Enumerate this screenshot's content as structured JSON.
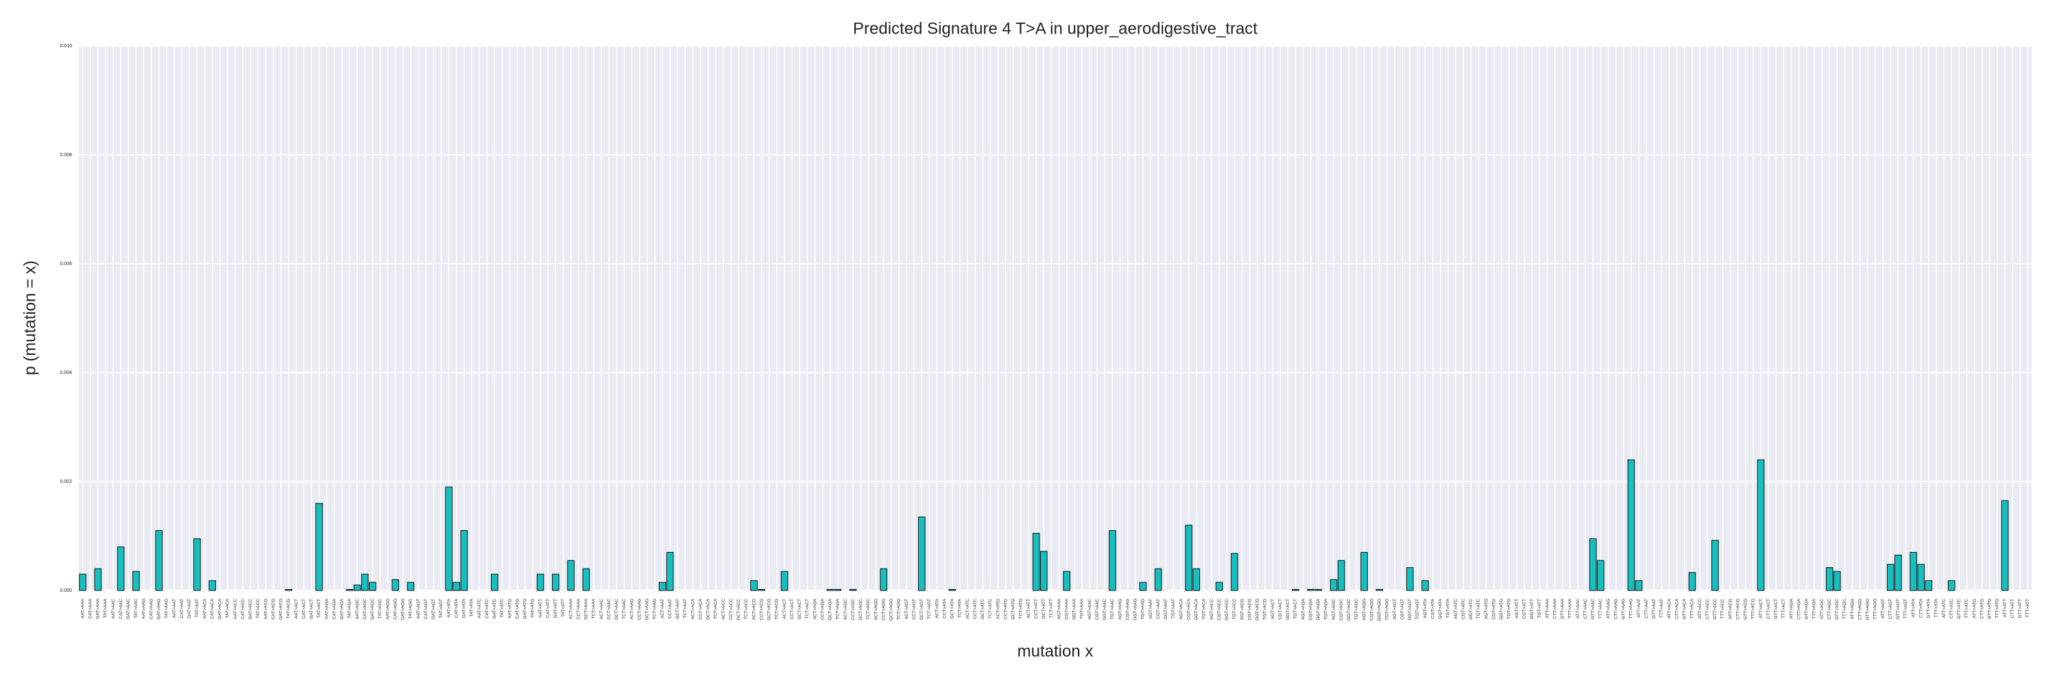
{
  "chart_data": {
    "type": "bar",
    "title": "Predicted Signature 4 T>A in upper_aerodigestive_tract",
    "xlabel": "mutation x",
    "ylabel": "p (mutation = x)",
    "color": "#17bfbf",
    "grid": true,
    "ylim": [
      0,
      0.01
    ],
    "yticks": [
      {
        "value": 0,
        "label": "0.000"
      },
      {
        "value": 0.002,
        "label": "0.002"
      },
      {
        "value": 0.004,
        "label": "0.004"
      },
      {
        "value": 0.006,
        "label": "0.006"
      },
      {
        "value": 0.008,
        "label": "0.008"
      },
      {
        "value": 0.01,
        "label": "0.010"
      }
    ],
    "categories": [
      "AAT>AAA",
      "CAT>AAA",
      "GAT>AAA",
      "TAT>AAA",
      "AAT>AAC",
      "CAT>AAC",
      "GAT>AAC",
      "TAT>AAC",
      "AAT>AAG",
      "CAT>AAG",
      "GAT>AAG",
      "TAT>AAG",
      "AAT>AAT",
      "CAT>AAT",
      "GAT>AAT",
      "TAT>AAT",
      "AAT>ACA",
      "CAT>ACA",
      "GAT>ACA",
      "TAT>ACA",
      "AAT>ACC",
      "CAT>ACC",
      "GAT>ACC",
      "TAT>ACC",
      "AAT>ACG",
      "CAT>ACG",
      "GAT>ACG",
      "TAT>ACG",
      "AAT>ACT",
      "CAT>ACT",
      "GAT>ACT",
      "TAT>ACT",
      "AAT>AGA",
      "CAT>AGA",
      "GAT>AGA",
      "TAT>AGA",
      "AAT>AGC",
      "CAT>AGC",
      "GAT>AGC",
      "TAT>AGC",
      "AAT>AGG",
      "CAT>AGG",
      "GAT>AGG",
      "TAT>AGG",
      "AAT>AGT",
      "CAT>AGT",
      "GAT>AGT",
      "TAT>AGT",
      "AAT>ATA",
      "CAT>ATA",
      "GAT>ATA",
      "TAT>ATA",
      "AAT>ATC",
      "CAT>ATC",
      "GAT>ATC",
      "TAT>ATC",
      "AAT>ATG",
      "CAT>ATG",
      "GAT>ATG",
      "TAT>ATG",
      "AAT>ATT",
      "CAT>ATT",
      "GAT>ATT",
      "TAT>ATT",
      "ACT>AAA",
      "CCT>AAA",
      "GCT>AAA",
      "TCT>AAA",
      "ACT>AAC",
      "CCT>AAC",
      "GCT>AAC",
      "TCT>AAC",
      "ACT>AAG",
      "CCT>AAG",
      "GCT>AAG",
      "TCT>AAG",
      "ACT>AAT",
      "CCT>AAT",
      "GCT>AAT",
      "TCT>AAT",
      "ACT>ACA",
      "CCT>ACA",
      "GCT>ACA",
      "TCT>ACA",
      "ACT>ACC",
      "CCT>ACC",
      "GCT>ACC",
      "TCT>ACC",
      "ACT>ACG",
      "CCT>ACG",
      "GCT>ACG",
      "TCT>ACG",
      "ACT>ACT",
      "CCT>ACT",
      "GCT>ACT",
      "TCT>ACT",
      "ACT>AGA",
      "CCT>AGA",
      "GCT>AGA",
      "TCT>AGA",
      "ACT>AGC",
      "CCT>AGC",
      "GCT>AGC",
      "TCT>AGC",
      "ACT>AGG",
      "CCT>AGG",
      "GCT>AGG",
      "TCT>AGG",
      "ACT>AGT",
      "CCT>AGT",
      "GCT>AGT",
      "TCT>AGT",
      "ACT>ATA",
      "CCT>ATA",
      "GCT>ATA",
      "TCT>ATA",
      "ACT>ATC",
      "CCT>ATC",
      "GCT>ATC",
      "TCT>ATC",
      "ACT>ATG",
      "CCT>ATG",
      "GCT>ATG",
      "TCT>ATG",
      "ACT>ATT",
      "CCT>ATT",
      "GCT>ATT",
      "TCT>ATT",
      "AGT>AAA",
      "CGT>AAA",
      "GGT>AAA",
      "TGT>AAA",
      "AGT>AAC",
      "CGT>AAC",
      "GGT>AAC",
      "TGT>AAC",
      "AGT>AAG",
      "CGT>AAG",
      "GGT>AAG",
      "TGT>AAG",
      "AGT>AAT",
      "CGT>AAT",
      "GGT>AAT",
      "TGT>AAT",
      "AGT>ACA",
      "CGT>ACA",
      "GGT>ACA",
      "TGT>ACA",
      "AGT>ACC",
      "CGT>ACC",
      "GGT>ACC",
      "TGT>ACC",
      "AGT>ACG",
      "CGT>ACG",
      "GGT>ACG",
      "TGT>ACG",
      "AGT>ACT",
      "CGT>ACT",
      "GGT>ACT",
      "TGT>ACT",
      "AGT>AGA",
      "CGT>AGA",
      "GGT>AGA",
      "TGT>AGA",
      "AGT>AGC",
      "CGT>AGC",
      "GGT>AGC",
      "TGT>AGC",
      "AGT>AGG",
      "CGT>AGG",
      "GGT>AGG",
      "TGT>AGG",
      "AGT>AGT",
      "CGT>AGT",
      "GGT>AGT",
      "TGT>AGT",
      "AGT>ATA",
      "CGT>ATA",
      "GGT>ATA",
      "TGT>ATA",
      "AGT>ATC",
      "CGT>ATC",
      "GGT>ATC",
      "TGT>ATC",
      "AGT>ATG",
      "CGT>ATG",
      "GGT>ATG",
      "TGT>ATG",
      "AGT>ATT",
      "CGT>ATT",
      "GGT>ATT",
      "TGT>ATT",
      "ATT>AAA",
      "CTT>AAA",
      "GTT>AAA",
      "TTT>AAA",
      "ATT>AAC",
      "CTT>AAC",
      "GTT>AAC",
      "TTT>AAC",
      "ATT>AAG",
      "CTT>AAG",
      "GTT>AAG",
      "TTT>AAG",
      "ATT>AAT",
      "CTT>AAT",
      "GTT>AAT",
      "TTT>AAT",
      "ATT>ACA",
      "CTT>ACA",
      "GTT>ACA",
      "TTT>ACA",
      "ATT>ACC",
      "CTT>ACC",
      "GTT>ACC",
      "TTT>ACC",
      "ATT>ACG",
      "CTT>ACG",
      "GTT>ACG",
      "TTT>ACG",
      "ATT>ACT",
      "CTT>ACT",
      "GTT>ACT",
      "TTT>ACT",
      "ATT>AGA",
      "CTT>AGA",
      "GTT>AGA",
      "TTT>AGA",
      "ATT>AGC",
      "CTT>AGC",
      "GTT>AGC",
      "TTT>AGC",
      "ATT>AGG",
      "CTT>AGG",
      "GTT>AGG",
      "TTT>AGG",
      "ATT>AGT",
      "CTT>AGT",
      "GTT>AGT",
      "TTT>AGT",
      "ATT>ATA",
      "CTT>ATA",
      "GTT>ATA",
      "TTT>ATA",
      "ATT>ATC",
      "CTT>ATC",
      "GTT>ATC",
      "TTT>ATC",
      "ATT>ATG",
      "CTT>ATG",
      "GTT>ATG",
      "TTT>ATG",
      "ATT>ATT",
      "CTT>ATT",
      "GTT>ATT",
      "TTT>ATT"
    ],
    "values": [
      0.0003,
      0,
      0.0004,
      0,
      0,
      0.0008,
      0,
      0.00035,
      0,
      0,
      0.0011,
      0,
      0,
      0,
      0,
      0.00095,
      0,
      0.00018,
      0,
      0,
      0,
      0,
      0,
      0,
      0,
      0,
      0,
      2e-05,
      0,
      0,
      0,
      0.0016,
      0,
      0,
      0,
      2e-05,
      0.0001,
      0.0003,
      0.00015,
      0,
      0,
      0.0002,
      0,
      0.00015,
      0,
      0,
      0,
      0,
      0.0019,
      0.00015,
      0.0011,
      0,
      0,
      0,
      0.0003,
      0,
      0,
      0,
      0,
      0,
      0.0003,
      0,
      0.0003,
      0,
      0.00055,
      0,
      0.0004,
      0,
      0,
      0,
      0,
      0,
      0,
      0,
      0,
      0,
      0.00015,
      0.0007,
      0,
      0,
      0,
      0,
      0,
      0,
      0,
      0,
      0,
      0,
      0.00018,
      2e-05,
      0,
      0,
      0.00035,
      0,
      0,
      0,
      0,
      0,
      2e-05,
      2e-05,
      0,
      2e-05,
      0,
      0,
      0,
      0.0004,
      0,
      0,
      0,
      0,
      0.00135,
      0,
      0,
      0,
      2e-05,
      0,
      0,
      0,
      0,
      0,
      0,
      0,
      0,
      0,
      0,
      0.00105,
      0.00072,
      0,
      0,
      0.00035,
      0,
      0,
      0,
      0,
      0,
      0.0011,
      0,
      0,
      0,
      0.00015,
      0,
      0.0004,
      0,
      0,
      0,
      0.0012,
      0.0004,
      0,
      0,
      0.00015,
      0,
      0.00068,
      0,
      0,
      0,
      0,
      0,
      0,
      0,
      2e-05,
      0,
      2e-05,
      2e-05,
      0,
      0.0002,
      0.00055,
      0,
      0,
      0.0007,
      0,
      2e-05,
      0,
      0,
      0,
      0.00042,
      0,
      0.00018,
      0,
      0,
      0,
      0,
      0,
      0,
      0,
      0,
      0,
      0,
      0,
      0,
      0,
      0,
      0,
      0,
      0,
      0,
      0,
      0,
      0,
      0.00095,
      0.00055,
      0,
      0,
      0,
      0.0024,
      0.00018,
      0,
      0,
      0,
      0,
      0,
      0,
      0.00033,
      0,
      0,
      0.00092,
      0,
      0,
      0,
      0,
      0,
      0.0024,
      0,
      0,
      0,
      0,
      0,
      0,
      0,
      0,
      0.00042,
      0.00035,
      0,
      0,
      0,
      0,
      0,
      0,
      0.00048,
      0.00065,
      0,
      0.0007,
      0.00048,
      0.00018,
      0,
      0,
      0.00018,
      0,
      0,
      0,
      0,
      0,
      0,
      0.00165,
      0,
      0,
      0
    ]
  }
}
